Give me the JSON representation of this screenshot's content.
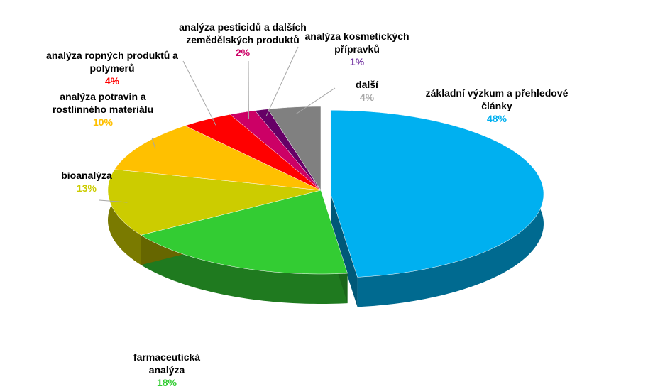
{
  "chart_data": {
    "type": "pie",
    "categories": [
      "základní výzkum a přehledové články",
      "farmaceutická analýza",
      "bioanalýza",
      "analýza potravin a rostlinného materiálu",
      "analýza ropných produktů a polymerů",
      "analýza pesticidů a dalších zemědělských produktů",
      "analýza kosmetických přípravků",
      "další"
    ],
    "values": [
      48,
      18,
      13,
      10,
      4,
      2,
      1,
      4
    ],
    "value_labels": [
      "48%",
      "18%",
      "13%",
      "10%",
      "4%",
      "2%",
      "1%",
      "4%"
    ],
    "colors": [
      "#00b0f0",
      "#33cc33",
      "#cccc00",
      "#ffc000",
      "#ff0000",
      "#cc0066",
      "#660066",
      "#808080"
    ]
  }
}
